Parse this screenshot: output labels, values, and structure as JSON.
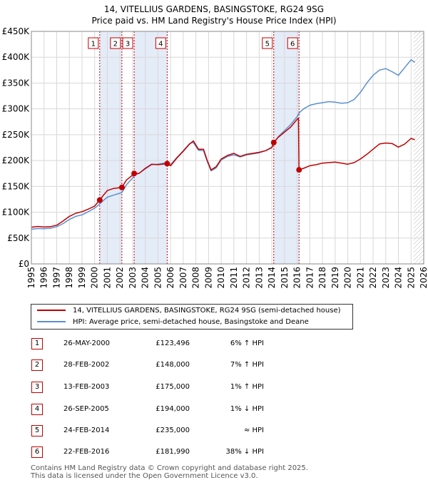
{
  "title_line1": "14, VITELLIUS GARDENS, BASINGSTOKE, RG24 9SG",
  "title_line2": "Price paid vs. HM Land Registry's House Price Index (HPI)",
  "colors": {
    "red": "#c00000",
    "blue": "#5b8fd0",
    "band": "#e4ecf8",
    "grid": "#d8d8d8"
  },
  "chart_data": {
    "type": "line",
    "xlim": [
      1995,
      2026
    ],
    "ylim": [
      0,
      450000
    ],
    "x_ticks": [
      "1995",
      "1996",
      "1997",
      "1998",
      "1999",
      "2000",
      "2001",
      "2002",
      "2003",
      "2004",
      "2005",
      "2006",
      "2007",
      "2008",
      "2009",
      "2010",
      "2011",
      "2012",
      "2013",
      "2014",
      "2015",
      "2016",
      "2017",
      "2018",
      "2019",
      "2020",
      "2021",
      "2022",
      "2023",
      "2024",
      "2025",
      "2026"
    ],
    "y_ticks": [
      {
        "value": 0,
        "label": "£0"
      },
      {
        "value": 50000,
        "label": "£50K"
      },
      {
        "value": 100000,
        "label": "£100K"
      },
      {
        "value": 150000,
        "label": "£150K"
      },
      {
        "value": 200000,
        "label": "£200K"
      },
      {
        "value": 250000,
        "label": "£250K"
      },
      {
        "value": 300000,
        "label": "£300K"
      },
      {
        "value": 350000,
        "label": "£350K"
      },
      {
        "value": 400000,
        "label": "£400K"
      },
      {
        "value": 450000,
        "label": "£450K"
      }
    ],
    "shaded_bands": [
      [
        2000.4,
        2002.15
      ],
      [
        2003.12,
        2005.73
      ],
      [
        2014.15,
        2016.15
      ]
    ],
    "future_from": 2025.2,
    "series": [
      {
        "name": "14, VITELLIUS GARDENS, BASINGSTOKE, RG24 9SG (semi-detached house)",
        "color_key": "red",
        "points": [
          [
            1995.0,
            71000
          ],
          [
            1995.5,
            72500
          ],
          [
            1996.0,
            71500
          ],
          [
            1996.5,
            72000
          ],
          [
            1997.0,
            75000
          ],
          [
            1997.5,
            83000
          ],
          [
            1998.0,
            92000
          ],
          [
            1998.5,
            98000
          ],
          [
            1999.0,
            101000
          ],
          [
            1999.5,
            106000
          ],
          [
            2000.0,
            112000
          ],
          [
            2000.4,
            123496
          ],
          [
            2000.7,
            133000
          ],
          [
            2001.0,
            142000
          ],
          [
            2001.5,
            146000
          ],
          [
            2002.15,
            148000
          ],
          [
            2002.5,
            162000
          ],
          [
            2003.0,
            172000
          ],
          [
            2003.12,
            175000
          ],
          [
            2003.5,
            175000
          ],
          [
            2004.0,
            185000
          ],
          [
            2004.5,
            193000
          ],
          [
            2005.0,
            192000
          ],
          [
            2005.73,
            194000
          ],
          [
            2006.0,
            190000
          ],
          [
            2006.5,
            205000
          ],
          [
            2007.0,
            218000
          ],
          [
            2007.5,
            232000
          ],
          [
            2007.8,
            238000
          ],
          [
            2008.2,
            222000
          ],
          [
            2008.6,
            222000
          ],
          [
            2008.9,
            200000
          ],
          [
            2009.2,
            182000
          ],
          [
            2009.6,
            188000
          ],
          [
            2010.0,
            203000
          ],
          [
            2010.5,
            210000
          ],
          [
            2011.0,
            214000
          ],
          [
            2011.5,
            208000
          ],
          [
            2012.0,
            212000
          ],
          [
            2012.5,
            214000
          ],
          [
            2013.0,
            216000
          ],
          [
            2013.5,
            219000
          ],
          [
            2014.0,
            225000
          ],
          [
            2014.15,
            235000
          ],
          [
            2014.5,
            245000
          ],
          [
            2015.0,
            255000
          ],
          [
            2015.5,
            265000
          ],
          [
            2016.0,
            280000
          ],
          [
            2016.1,
            282000
          ],
          [
            2016.15,
            181990
          ],
          [
            2016.5,
            185000
          ],
          [
            2017.0,
            190000
          ],
          [
            2017.5,
            192000
          ],
          [
            2018.0,
            195000
          ],
          [
            2018.5,
            196000
          ],
          [
            2019.0,
            197000
          ],
          [
            2019.5,
            195000
          ],
          [
            2020.0,
            193000
          ],
          [
            2020.5,
            196000
          ],
          [
            2021.0,
            203000
          ],
          [
            2021.5,
            212000
          ],
          [
            2022.0,
            222000
          ],
          [
            2022.5,
            232000
          ],
          [
            2023.0,
            234000
          ],
          [
            2023.5,
            233000
          ],
          [
            2024.0,
            226000
          ],
          [
            2024.5,
            232000
          ],
          [
            2025.0,
            243000
          ],
          [
            2025.3,
            240000
          ]
        ]
      },
      {
        "name": "HPI: Average price, semi-detached house, Basingstoke and Deane",
        "color_key": "blue",
        "points": [
          [
            1995.0,
            67000
          ],
          [
            1995.5,
            68500
          ],
          [
            1996.0,
            68000
          ],
          [
            1996.5,
            69000
          ],
          [
            1997.0,
            72000
          ],
          [
            1997.5,
            78000
          ],
          [
            1998.0,
            86000
          ],
          [
            1998.5,
            92000
          ],
          [
            1999.0,
            95000
          ],
          [
            1999.5,
            101000
          ],
          [
            2000.0,
            108000
          ],
          [
            2000.4,
            116000
          ],
          [
            2000.7,
            123000
          ],
          [
            2001.0,
            129000
          ],
          [
            2001.5,
            133000
          ],
          [
            2002.15,
            138000
          ],
          [
            2002.5,
            153000
          ],
          [
            2003.0,
            166000
          ],
          [
            2003.12,
            172000
          ],
          [
            2003.5,
            175000
          ],
          [
            2004.0,
            184000
          ],
          [
            2004.5,
            192000
          ],
          [
            2005.0,
            193000
          ],
          [
            2005.73,
            196000
          ],
          [
            2006.0,
            192000
          ],
          [
            2006.5,
            206000
          ],
          [
            2007.0,
            219000
          ],
          [
            2007.5,
            233000
          ],
          [
            2007.8,
            235000
          ],
          [
            2008.2,
            220000
          ],
          [
            2008.6,
            219000
          ],
          [
            2008.9,
            198000
          ],
          [
            2009.2,
            180000
          ],
          [
            2009.6,
            186000
          ],
          [
            2010.0,
            201000
          ],
          [
            2010.5,
            208000
          ],
          [
            2011.0,
            211000
          ],
          [
            2011.5,
            207000
          ],
          [
            2012.0,
            211000
          ],
          [
            2012.5,
            213000
          ],
          [
            2013.0,
            215000
          ],
          [
            2013.5,
            219000
          ],
          [
            2014.0,
            226000
          ],
          [
            2014.15,
            234000
          ],
          [
            2014.5,
            246000
          ],
          [
            2015.0,
            258000
          ],
          [
            2015.5,
            270000
          ],
          [
            2016.0,
            285000
          ],
          [
            2016.15,
            292000
          ],
          [
            2016.5,
            300000
          ],
          [
            2017.0,
            307000
          ],
          [
            2017.5,
            310000
          ],
          [
            2018.0,
            312000
          ],
          [
            2018.5,
            314000
          ],
          [
            2019.0,
            313000
          ],
          [
            2019.5,
            311000
          ],
          [
            2020.0,
            312000
          ],
          [
            2020.5,
            318000
          ],
          [
            2021.0,
            332000
          ],
          [
            2021.5,
            350000
          ],
          [
            2022.0,
            365000
          ],
          [
            2022.5,
            375000
          ],
          [
            2023.0,
            378000
          ],
          [
            2023.5,
            372000
          ],
          [
            2024.0,
            365000
          ],
          [
            2024.5,
            380000
          ],
          [
            2025.0,
            395000
          ],
          [
            2025.3,
            390000
          ]
        ]
      }
    ],
    "sales": [
      {
        "num": "1",
        "year": 2000.4,
        "price": 123496
      },
      {
        "num": "2",
        "year": 2002.15,
        "price": 148000
      },
      {
        "num": "3",
        "year": 2003.12,
        "price": 175000
      },
      {
        "num": "4",
        "year": 2005.73,
        "price": 194000
      },
      {
        "num": "5",
        "year": 2014.15,
        "price": 235000
      },
      {
        "num": "6",
        "year": 2016.15,
        "price": 181990
      }
    ]
  },
  "legend": {
    "red_label": "14, VITELLIUS GARDENS, BASINGSTOKE, RG24 9SG (semi-detached house)",
    "blue_label": "HPI: Average price, semi-detached house, Basingstoke and Deane"
  },
  "transactions": [
    {
      "num": "1",
      "date": "26-MAY-2000",
      "price": "£123,496",
      "hpi": "6% ↑ HPI"
    },
    {
      "num": "2",
      "date": "28-FEB-2002",
      "price": "£148,000",
      "hpi": "7% ↑ HPI"
    },
    {
      "num": "3",
      "date": "13-FEB-2003",
      "price": "£175,000",
      "hpi": "1% ↑ HPI"
    },
    {
      "num": "4",
      "date": "26-SEP-2005",
      "price": "£194,000",
      "hpi": "1% ↓ HPI"
    },
    {
      "num": "5",
      "date": "24-FEB-2014",
      "price": "£235,000",
      "hpi": "≈ HPI"
    },
    {
      "num": "6",
      "date": "22-FEB-2016",
      "price": "£181,990",
      "hpi": "38% ↓ HPI"
    }
  ],
  "footer_line1": "Contains HM Land Registry data © Crown copyright and database right 2025.",
  "footer_line2": "This data is licensed under the Open Government Licence v3.0."
}
